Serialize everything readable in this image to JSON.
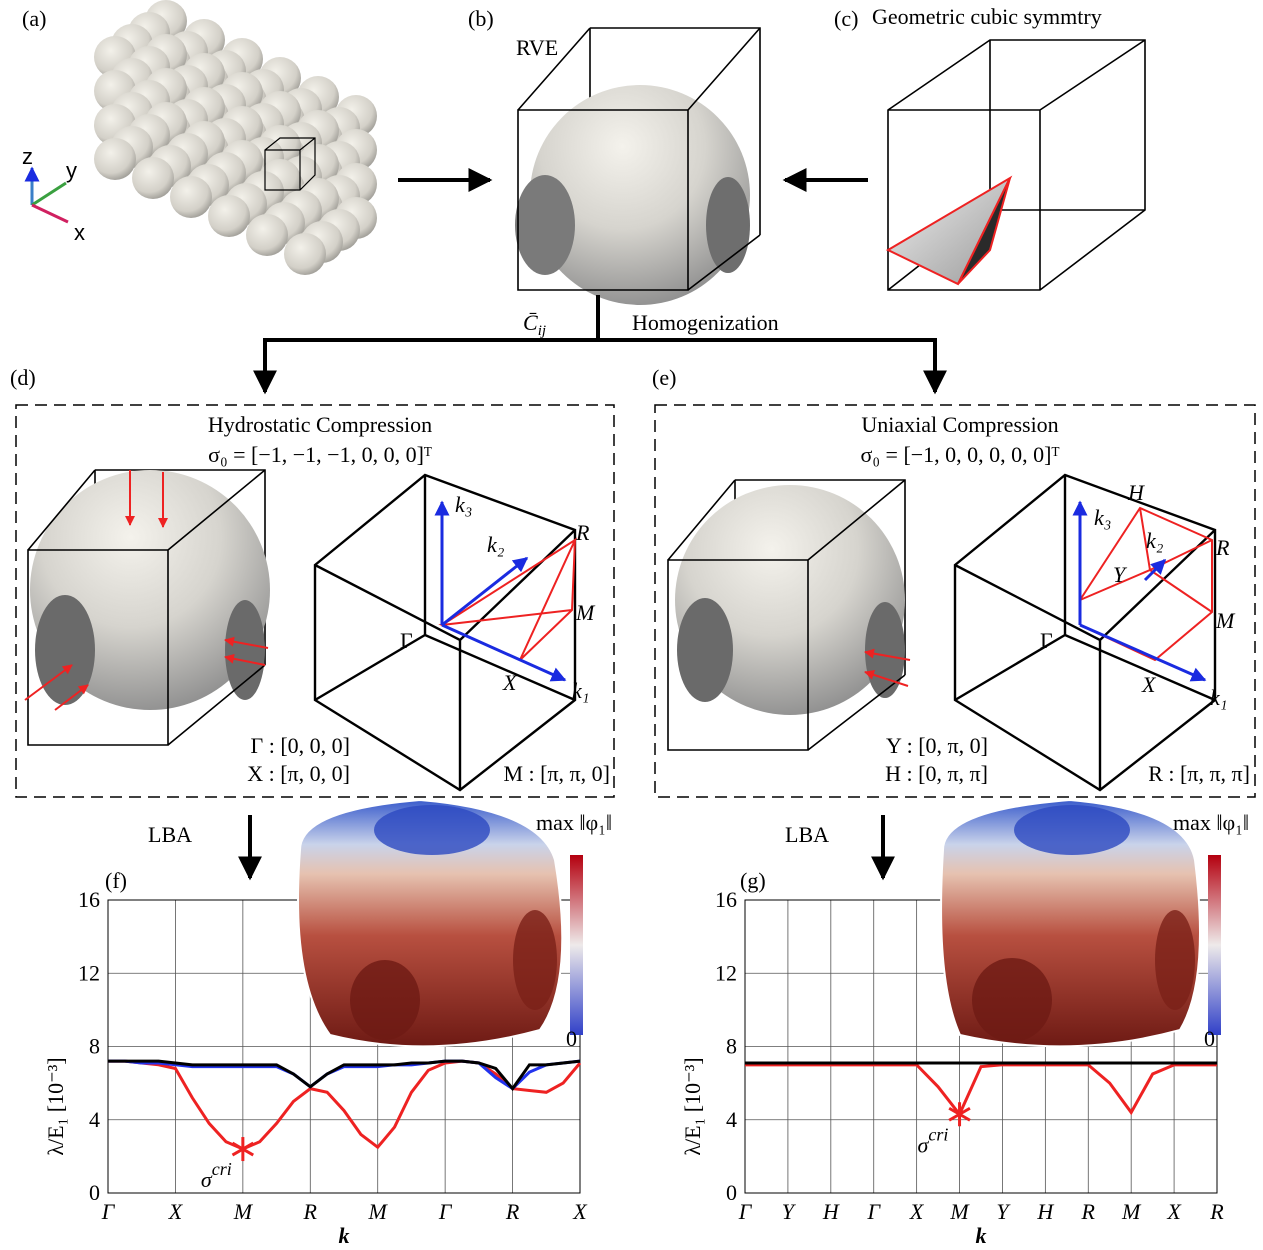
{
  "panels": {
    "a": {
      "label": "(a)",
      "axes": [
        "z",
        "y",
        "x"
      ]
    },
    "b": {
      "label": "(b)",
      "title": "RVE"
    },
    "c": {
      "label": "(c)",
      "title": "Geometric cubic symmtry"
    },
    "homogenization": {
      "tensor": "C̄",
      "tensor_sub": "ij",
      "text": "Homogenization"
    },
    "d": {
      "label": "(d)",
      "title": "Hydrostatic Compression",
      "stress": "σ₀ = [−1, −1, −1, 0, 0, 0]ᵀ",
      "points": [
        "Γ : [0, 0, 0]",
        "X : [π, 0, 0]",
        "M : [π, π, 0]"
      ],
      "bz_labels": [
        "k₃",
        "k₂",
        "k₁",
        "R",
        "M",
        "X",
        "Γ"
      ]
    },
    "e": {
      "label": "(e)",
      "title": "Uniaxial Compression",
      "stress": "σ₀ = [−1, 0, 0, 0, 0, 0]ᵀ",
      "points": [
        "Y : [0, π, 0]",
        "H : [0, π, π]",
        "R : [π, π, π]"
      ],
      "bz_labels": [
        "k₃",
        "k₂",
        "k₁",
        "H",
        "R",
        "Y",
        "M",
        "X",
        "Γ"
      ]
    },
    "lba": "LBA",
    "f": {
      "label": "(f)"
    },
    "g": {
      "label": "(g)"
    },
    "colorbar": {
      "label": "max ‖φ₁‖",
      "min": "0"
    }
  },
  "chart_data": [
    {
      "type": "line",
      "xlabel": "k",
      "ylabel": "λ/E₁ [10⁻³]",
      "xlim": [
        0,
        7
      ],
      "ylim": [
        0,
        16
      ],
      "yticks": [
        0,
        4,
        8,
        12,
        16
      ],
      "grid": true,
      "xticks": [
        {
          "value": 0,
          "label": "Γ"
        },
        {
          "value": 1,
          "label": "X"
        },
        {
          "value": 2,
          "label": "M"
        },
        {
          "value": 3,
          "label": "R"
        },
        {
          "value": 4,
          "label": "M"
        },
        {
          "value": 5,
          "label": "Γ"
        },
        {
          "value": 6,
          "label": "R"
        },
        {
          "value": 7,
          "label": "X"
        }
      ],
      "x": [
        0,
        0.25,
        0.5,
        0.75,
        1,
        1.25,
        1.5,
        1.75,
        2,
        2.25,
        2.5,
        2.75,
        3,
        3.25,
        3.5,
        3.75,
        4,
        4.25,
        4.5,
        4.75,
        5,
        5.25,
        5.5,
        5.75,
        6,
        6.25,
        6.5,
        6.75,
        7
      ],
      "series": [
        {
          "color": "#ee2222",
          "values": [
            7.2,
            7.2,
            7.1,
            7.0,
            6.8,
            5.2,
            3.8,
            2.8,
            2.4,
            2.8,
            3.8,
            5.0,
            5.7,
            5.5,
            4.5,
            3.2,
            2.5,
            3.6,
            5.5,
            6.7,
            7.1,
            7.2,
            7.1,
            6.5,
            5.7,
            5.6,
            5.5,
            6.0,
            7.1
          ]
        },
        {
          "color": "#2233ee",
          "values": [
            7.2,
            7.2,
            7.1,
            7.1,
            7.0,
            6.9,
            6.9,
            6.9,
            6.9,
            6.9,
            6.9,
            6.5,
            5.8,
            6.5,
            6.9,
            6.9,
            6.9,
            7.0,
            7.0,
            7.1,
            7.2,
            7.2,
            7.1,
            6.3,
            5.7,
            6.6,
            7.0,
            7.1,
            7.2
          ]
        },
        {
          "color": "#000000",
          "values": [
            7.2,
            7.2,
            7.2,
            7.2,
            7.1,
            7.0,
            7.0,
            7.0,
            7.0,
            7.0,
            7.0,
            6.5,
            5.8,
            6.5,
            7.0,
            7.0,
            7.0,
            7.0,
            7.1,
            7.1,
            7.2,
            7.2,
            7.1,
            6.8,
            5.7,
            7.0,
            7.0,
            7.1,
            7.2
          ]
        }
      ],
      "annotation": {
        "text": "σ",
        "sup": "cri",
        "x": 2,
        "y": 2.4,
        "color": "#ee2222"
      }
    },
    {
      "type": "line",
      "xlabel": "k",
      "ylabel": "λ/E₁ [10⁻³]",
      "xlim": [
        0,
        11
      ],
      "ylim": [
        0,
        16
      ],
      "yticks": [
        0,
        4,
        8,
        12,
        16
      ],
      "grid": true,
      "xticks": [
        {
          "value": 0,
          "label": "Γ"
        },
        {
          "value": 1,
          "label": "Y"
        },
        {
          "value": 2,
          "label": "H"
        },
        {
          "value": 3,
          "label": "Γ"
        },
        {
          "value": 4,
          "label": "X"
        },
        {
          "value": 5,
          "label": "M"
        },
        {
          "value": 6,
          "label": "Y"
        },
        {
          "value": 7,
          "label": "H"
        },
        {
          "value": 8,
          "label": "R"
        },
        {
          "value": 9,
          "label": "M"
        },
        {
          "value": 10,
          "label": "X"
        },
        {
          "value": 11,
          "label": "R"
        }
      ],
      "x": [
        0,
        0.5,
        1,
        1.5,
        2,
        2.5,
        3,
        3.5,
        4,
        4.5,
        5,
        5.5,
        6,
        6.5,
        7,
        7.5,
        8,
        8.5,
        9,
        9.5,
        10,
        10.5,
        11
      ],
      "series": [
        {
          "color": "#ee2222",
          "values": [
            7.0,
            7.0,
            7.0,
            7.0,
            7.0,
            7.0,
            7.0,
            7.0,
            7.0,
            5.8,
            4.3,
            6.9,
            7.0,
            7.0,
            7.0,
            7.0,
            7.0,
            6.0,
            4.4,
            6.5,
            7.0,
            7.0,
            7.0
          ]
        },
        {
          "color": "#2233ee",
          "values": [
            7.1,
            7.1,
            7.1,
            7.1,
            7.1,
            7.1,
            7.1,
            7.1,
            7.1,
            7.1,
            7.1,
            7.1,
            7.1,
            7.1,
            7.1,
            7.1,
            7.1,
            7.1,
            7.1,
            7.1,
            7.1,
            7.1,
            7.1
          ]
        },
        {
          "color": "#000000",
          "values": [
            7.1,
            7.1,
            7.1,
            7.1,
            7.1,
            7.1,
            7.1,
            7.1,
            7.1,
            7.1,
            7.1,
            7.1,
            7.1,
            7.1,
            7.1,
            7.1,
            7.1,
            7.1,
            7.1,
            7.1,
            7.1,
            7.1,
            7.1
          ]
        }
      ],
      "annotation": {
        "text": "σ",
        "sup": "cri",
        "x": 5,
        "y": 4.3,
        "color": "#ee2222"
      }
    }
  ]
}
